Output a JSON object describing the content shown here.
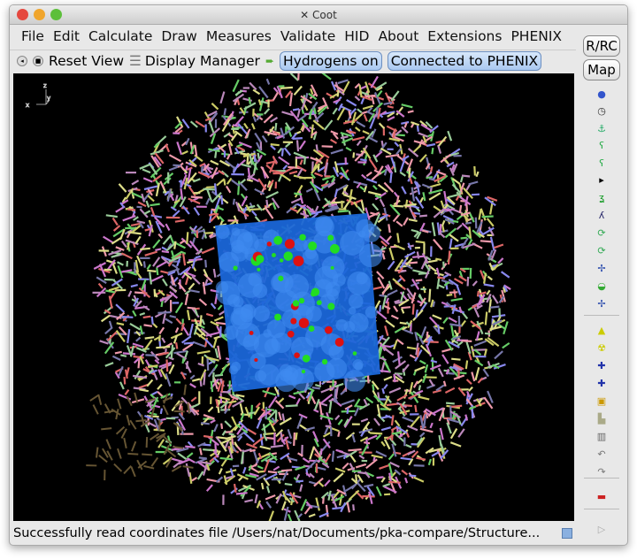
{
  "window": {
    "title": "Coot"
  },
  "menu": [
    "File",
    "Edit",
    "Calculate",
    "Draw",
    "Measures",
    "Validate",
    "HID",
    "About",
    "Extensions",
    "PHENIX"
  ],
  "toolbar": {
    "reset_view": "Reset View",
    "display_manager": "Display Manager",
    "hydrogens": "Hydrogens on",
    "phenix": "Connected to PHENIX"
  },
  "side": {
    "rrc": "R/RC",
    "map": "Map",
    "icons": [
      "rotate-translate-icon",
      "clock-icon",
      "torsion-icon",
      "rotamer-icon",
      "flip-peptide-icon",
      "more-arrow-icon",
      "sidechain-icon",
      "chain-icon",
      "regularize-icon",
      "refine-icon",
      "backbone-icon",
      "side-by-side-icon",
      "chiral-icon",
      "add-atom-icon",
      "radiation-icon",
      "add-terminal-icon",
      "add-alt-conf-icon",
      "pointer-icon",
      "rigid-body-icon",
      "delete-icon",
      "undo-icon",
      "redo-icon",
      "flag-icon",
      "play-icon"
    ]
  },
  "axes": {
    "x": "x",
    "y": "y",
    "z": "z"
  },
  "status": "Successfully read coordinates file /Users/nat/Documents/pka-compare/Structure..."
}
